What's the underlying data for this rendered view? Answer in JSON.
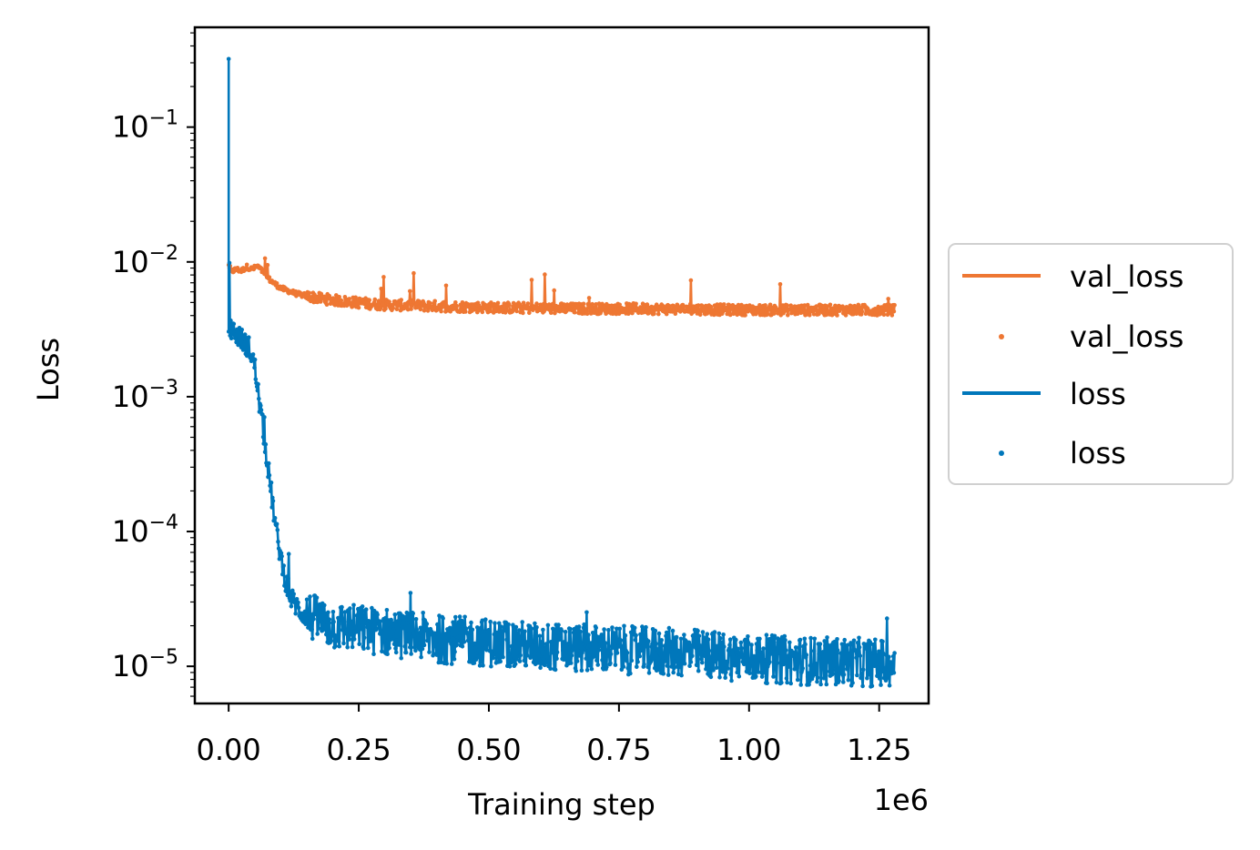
{
  "chart_data": {
    "type": "line",
    "xlabel": "Training step",
    "ylabel": "Loss",
    "x_offset_label": "1e6",
    "xscale": "linear",
    "yscale": "log",
    "xlim": [
      -65000,
      1345000
    ],
    "ylim": [
      5.3e-06,
      0.55
    ],
    "x_ticks": [
      {
        "value": 0,
        "label": "0.00"
      },
      {
        "value": 250000,
        "label": "0.25"
      },
      {
        "value": 500000,
        "label": "0.50"
      },
      {
        "value": 750000,
        "label": "0.75"
      },
      {
        "value": 1000000,
        "label": "1.00"
      },
      {
        "value": 1250000,
        "label": "1.25"
      }
    ],
    "y_ticks": [
      {
        "value": 0.1,
        "base": "10",
        "exp": "−1"
      },
      {
        "value": 0.01,
        "base": "10",
        "exp": "−2"
      },
      {
        "value": 0.001,
        "base": "10",
        "exp": "−3"
      },
      {
        "value": 0.0001,
        "base": "10",
        "exp": "−4"
      },
      {
        "value": 1e-05,
        "base": "10",
        "exp": "−5"
      }
    ],
    "legend_position": "center-right-outside",
    "series": [
      {
        "name": "val_loss",
        "legend_line": "val_loss",
        "legend_dots": "val_loss",
        "color": "#ee7733",
        "x": [
          0,
          5000,
          15000,
          25000,
          35000,
          45000,
          55000,
          65000,
          80000,
          100000,
          130000,
          170000,
          220000,
          300000,
          400000,
          500000,
          650000,
          800000,
          1000000,
          1150000,
          1280000
        ],
        "y": [
          0.0095,
          0.0085,
          0.0088,
          0.0086,
          0.0092,
          0.0088,
          0.0093,
          0.0085,
          0.0073,
          0.0064,
          0.0058,
          0.0054,
          0.0051,
          0.0048,
          0.0047,
          0.0046,
          0.0045,
          0.0045,
          0.0044,
          0.0044,
          0.0044
        ],
        "noise": 0.04
      },
      {
        "name": "loss",
        "legend_line": "loss",
        "legend_dots": "loss",
        "color": "#0077bb",
        "x": [
          0,
          2000,
          4000,
          8000,
          20000,
          40000,
          50000,
          60000,
          70000,
          80000,
          90000,
          100000,
          110000,
          120000,
          140000,
          170000,
          200000,
          300000,
          400000,
          500000,
          600000,
          700000,
          800000,
          900000,
          1000000,
          1100000,
          1200000,
          1280000
        ],
        "y": [
          0.32,
          0.0032,
          0.0032,
          0.0031,
          0.0028,
          0.0023,
          0.0017,
          0.00085,
          0.00045,
          0.00022,
          0.00011,
          6.5e-05,
          4.2e-05,
          3.2e-05,
          2.5e-05,
          2.2e-05,
          2e-05,
          1.8e-05,
          1.6e-05,
          1.5e-05,
          1.4e-05,
          1.35e-05,
          1.3e-05,
          1.25e-05,
          1.15e-05,
          1.1e-05,
          1.08e-05,
          1.05e-05
        ],
        "noise": 0.18
      }
    ]
  }
}
